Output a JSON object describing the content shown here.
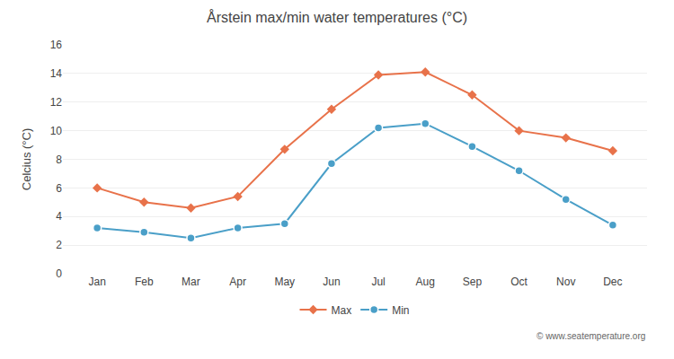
{
  "chart_data": {
    "type": "line",
    "title": "Årstein max/min water temperatures (°C)",
    "ylabel": "Celcius (°C)",
    "categories": [
      "Jan",
      "Feb",
      "Mar",
      "Apr",
      "May",
      "Jun",
      "Jul",
      "Aug",
      "Sep",
      "Oct",
      "Nov",
      "Dec"
    ],
    "series": [
      {
        "name": "Max",
        "color": "#e8724a",
        "marker": "diamond",
        "values": [
          6.0,
          5.0,
          4.6,
          5.4,
          8.7,
          11.5,
          13.9,
          14.1,
          12.5,
          10.0,
          9.5,
          8.6
        ]
      },
      {
        "name": "Min",
        "color": "#4a9fc8",
        "marker": "circle",
        "values": [
          3.2,
          2.9,
          2.5,
          3.2,
          3.5,
          7.7,
          10.2,
          10.5,
          8.9,
          7.2,
          5.2,
          3.4
        ]
      }
    ],
    "ylim": [
      0,
      16
    ],
    "yticks": [
      0,
      2,
      4,
      6,
      8,
      10,
      12,
      14,
      16
    ],
    "grid": true,
    "legend": "bottom",
    "annotations": [
      "© www.seatemperature.org"
    ]
  }
}
